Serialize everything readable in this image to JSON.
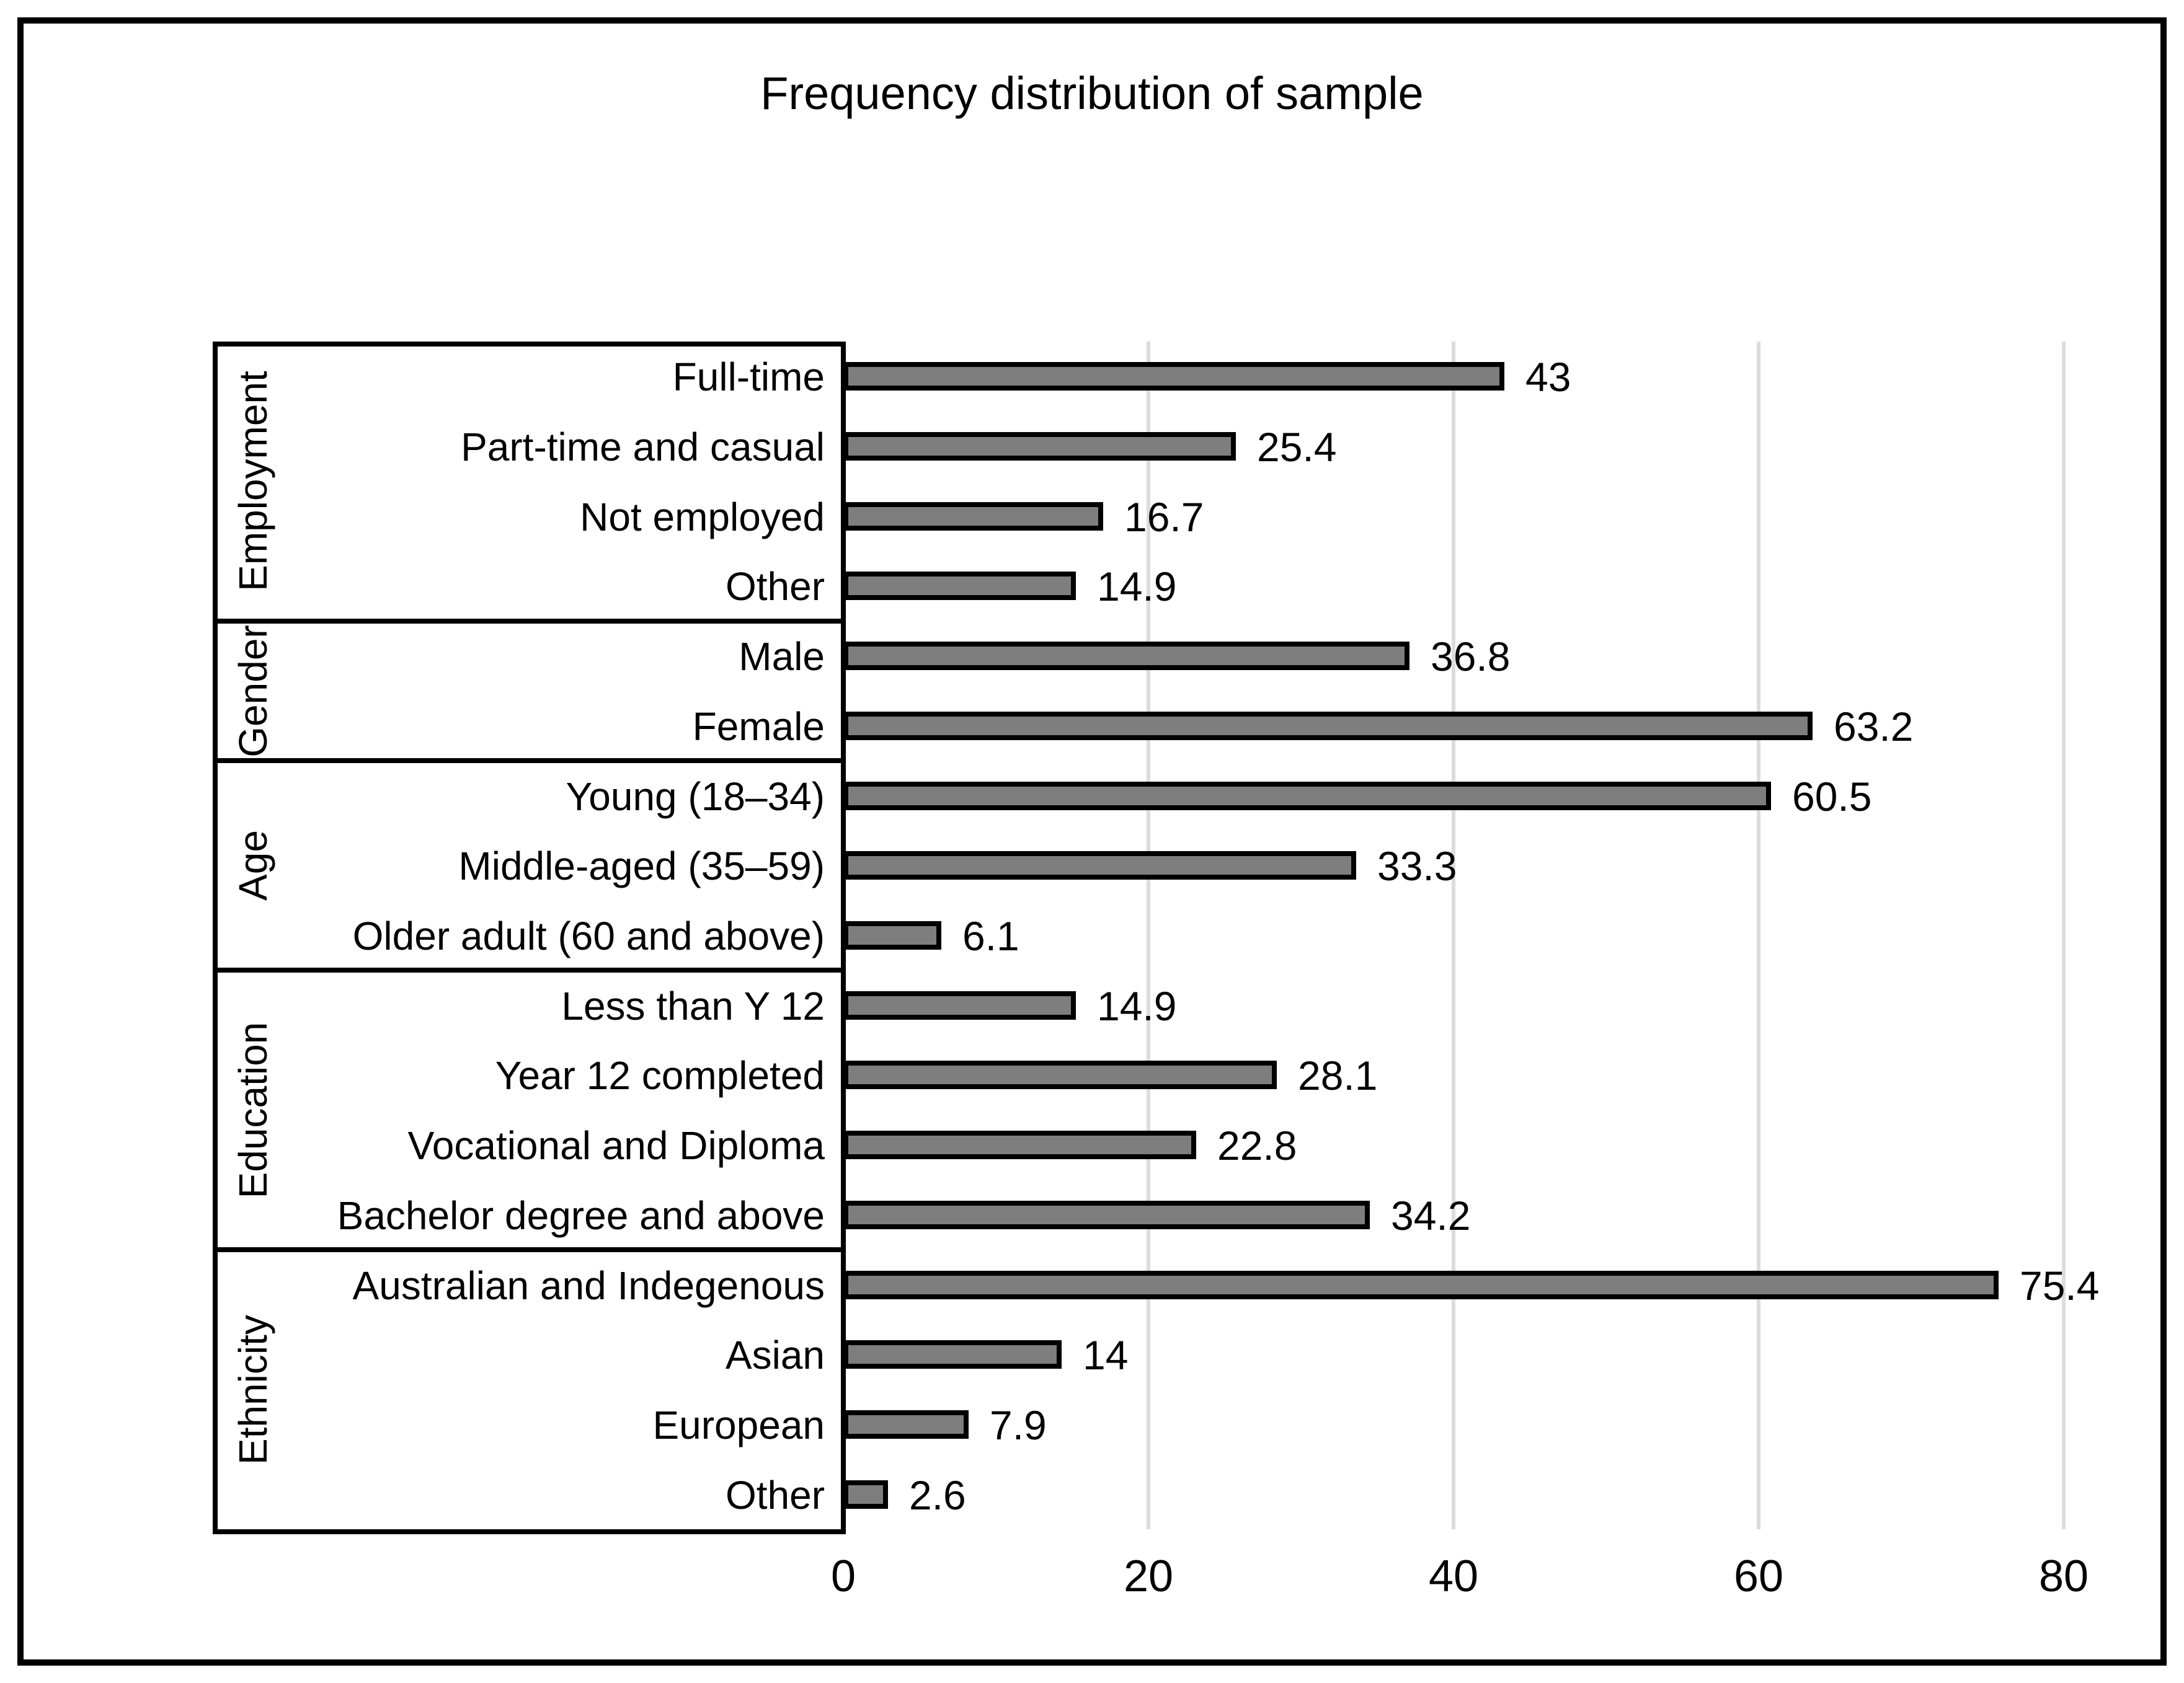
{
  "title": "Frequency distribution of sample",
  "chart_data": {
    "type": "bar",
    "orientation": "horizontal",
    "title": "Frequency distribution of sample",
    "xlabel": "",
    "ylabel": "",
    "x_ticks": [
      "0",
      "20",
      "40",
      "60",
      "80"
    ],
    "x_tick_values": [
      0,
      20,
      40,
      60,
      80
    ],
    "xlim": [
      0,
      84
    ],
    "grid": "vertical-major",
    "legend": "none",
    "bar_color": "#7e7e7e",
    "bar_border_color": "#000000",
    "gridline_color": "#dcdcdc",
    "groups": [
      {
        "label": "Employment",
        "items": [
          {
            "label": "Full-time",
            "value": 43,
            "value_label": "43"
          },
          {
            "label": "Part-time and casual",
            "value": 25.4,
            "value_label": "25.4"
          },
          {
            "label": "Not employed",
            "value": 16.7,
            "value_label": "16.7"
          },
          {
            "label": "Other",
            "value": 14.9,
            "value_label": "14.9"
          }
        ]
      },
      {
        "label": "Gender",
        "items": [
          {
            "label": "Male",
            "value": 36.8,
            "value_label": "36.8"
          },
          {
            "label": "Female",
            "value": 63.2,
            "value_label": "63.2"
          }
        ]
      },
      {
        "label": "Age",
        "items": [
          {
            "label": "Young (18–34)",
            "value": 60.5,
            "value_label": "60.5"
          },
          {
            "label": "Middle-aged (35–59)",
            "value": 33.3,
            "value_label": "33.3"
          },
          {
            "label": "Older adult (60 and above)",
            "value": 6.1,
            "value_label": "6.1"
          }
        ]
      },
      {
        "label": "Education",
        "items": [
          {
            "label": "Less than Y 12",
            "value": 14.9,
            "value_label": "14.9"
          },
          {
            "label": "Year 12 completed",
            "value": 28.1,
            "value_label": "28.1"
          },
          {
            "label": "Vocational and Diploma",
            "value": 22.8,
            "value_label": "22.8"
          },
          {
            "label": "Bachelor degree and above",
            "value": 34.2,
            "value_label": "34.2"
          }
        ]
      },
      {
        "label": "Ethnicity",
        "items": [
          {
            "label": "Australian and Indegenous",
            "value": 75.4,
            "value_label": "75.4"
          },
          {
            "label": "Asian",
            "value": 14,
            "value_label": "14"
          },
          {
            "label": "European",
            "value": 7.9,
            "value_label": "7.9"
          },
          {
            "label": "Other",
            "value": 2.6,
            "value_label": "2.6"
          }
        ]
      }
    ]
  }
}
